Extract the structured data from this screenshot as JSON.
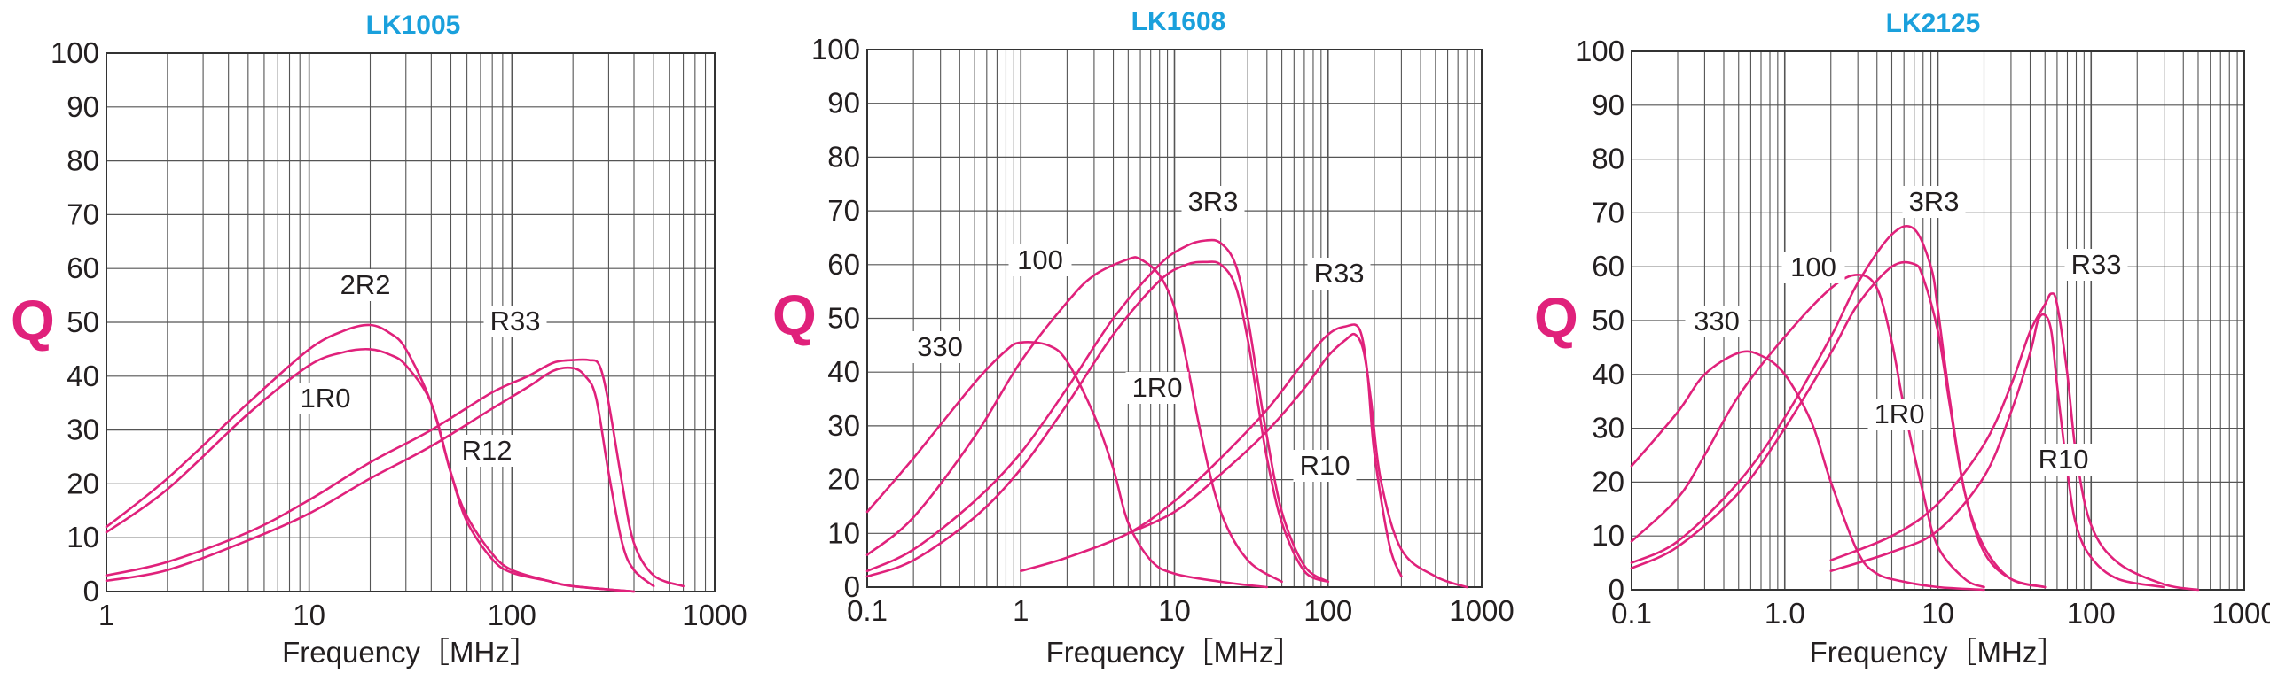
{
  "colors": {
    "title": "#1aa0dc",
    "curve": "#e0217b",
    "ylabel": "#e0217b",
    "grid": "#555555",
    "text": "#231f20"
  },
  "chart_data": [
    {
      "type": "line",
      "title": "LK1005",
      "xlabel": "Frequency［MHz］",
      "ylabel": "Q",
      "xscale": "log",
      "xlim": [
        1,
        1000
      ],
      "ylim": [
        0,
        100
      ],
      "xticks": [
        1,
        10,
        100,
        1000
      ],
      "xtick_labels": [
        "1",
        "10",
        "100",
        "1000"
      ],
      "yticks": [
        0,
        10,
        20,
        30,
        40,
        50,
        60,
        70,
        80,
        90,
        100
      ],
      "grid": true,
      "series": [
        {
          "name": "2R2",
          "x": [
            1,
            2,
            5,
            10,
            15,
            20,
            25,
            30,
            40,
            50,
            60,
            80,
            100,
            150,
            200,
            400
          ],
          "y": [
            12,
            21,
            35,
            45,
            48.5,
            49.5,
            48,
            45,
            35,
            22,
            14,
            7,
            4,
            2,
            1,
            0
          ]
        },
        {
          "name": "1R0",
          "x": [
            1,
            2,
            5,
            10,
            15,
            20,
            25,
            30,
            40,
            50,
            60,
            80,
            100,
            150,
            200,
            400
          ],
          "y": [
            11,
            19,
            33,
            42,
            44.5,
            45,
            44,
            42,
            35,
            22,
            13,
            6,
            3.5,
            2,
            1,
            0
          ]
        },
        {
          "name": "R33",
          "x": [
            1,
            2,
            5,
            10,
            20,
            40,
            80,
            120,
            160,
            200,
            240,
            270,
            300,
            350,
            400,
            500,
            700
          ],
          "y": [
            3,
            5.5,
            11,
            17,
            24,
            30,
            37,
            40,
            42.5,
            43,
            43,
            42,
            35,
            20,
            9,
            3,
            1
          ]
        },
        {
          "name": "R12",
          "x": [
            1,
            2,
            5,
            10,
            20,
            40,
            80,
            120,
            160,
            200,
            230,
            260,
            300,
            350,
            400,
            500
          ],
          "y": [
            2,
            4,
            9.5,
            14.5,
            21,
            27,
            34,
            38,
            41,
            41.5,
            40,
            36,
            22,
            9,
            4,
            1
          ]
        }
      ],
      "annotations": [
        "2R2",
        "1R0",
        "R33",
        "R12"
      ]
    },
    {
      "type": "line",
      "title": "LK1608",
      "xlabel": "Frequency［MHz］",
      "ylabel": "Q",
      "xscale": "log",
      "xlim": [
        0.1,
        1000
      ],
      "ylim": [
        0,
        100
      ],
      "xticks": [
        0.1,
        1,
        10,
        100,
        1000
      ],
      "xtick_labels": [
        "0.1",
        "1",
        "10",
        "100",
        "1000"
      ],
      "yticks": [
        0,
        10,
        20,
        30,
        40,
        50,
        60,
        70,
        80,
        90,
        100
      ],
      "grid": true,
      "series": [
        {
          "name": "330",
          "x": [
            0.1,
            0.2,
            0.5,
            0.8,
            1,
            1.5,
            2,
            3,
            4,
            5,
            7,
            10,
            20,
            40
          ],
          "y": [
            14,
            24,
            38,
            44,
            45.5,
            45,
            42,
            32,
            22,
            12,
            5,
            2.5,
            1,
            0
          ]
        },
        {
          "name": "100",
          "x": [
            0.1,
            0.2,
            0.5,
            1,
            2,
            3,
            5,
            6,
            8,
            10,
            12,
            15,
            20,
            30,
            50
          ],
          "y": [
            6,
            13,
            28,
            42,
            53,
            58,
            61,
            61,
            58,
            52,
            42,
            28,
            14,
            5,
            1
          ]
        },
        {
          "name": "3R3",
          "x": [
            0.1,
            0.2,
            0.5,
            1,
            2,
            4,
            8,
            12,
            16,
            20,
            25,
            30,
            35,
            40,
            50,
            70,
            100
          ],
          "y": [
            3,
            7,
            16,
            25,
            37,
            50,
            60,
            63.5,
            64.5,
            64,
            60,
            50,
            38,
            28,
            14,
            4,
            1
          ]
        },
        {
          "name": "1R0",
          "x": [
            0.1,
            0.2,
            0.5,
            1,
            2,
            4,
            8,
            12,
            16,
            20,
            25,
            30,
            35,
            40,
            50,
            70,
            100
          ],
          "y": [
            2,
            5,
            13,
            22,
            34,
            47,
            57,
            60,
            60.5,
            60,
            56,
            46,
            34,
            24,
            12,
            3,
            1
          ]
        },
        {
          "name": "R33",
          "x": [
            1,
            2,
            5,
            10,
            20,
            40,
            70,
            100,
            130,
            160,
            180,
            200,
            250,
            300
          ],
          "y": [
            3,
            5.5,
            10,
            16,
            24,
            33,
            42,
            47,
            48.5,
            48,
            40,
            25,
            8,
            2
          ]
        },
        {
          "name": "R10",
          "x": [
            5,
            10,
            20,
            40,
            70,
            100,
            130,
            150,
            170,
            190,
            220,
            300,
            500,
            800
          ],
          "y": [
            10,
            14,
            21,
            29,
            37,
            43,
            46,
            47,
            44,
            35,
            20,
            7,
            2,
            0
          ]
        }
      ],
      "annotations": [
        "330",
        "100",
        "3R3",
        "1R0",
        "R33",
        "R10"
      ]
    },
    {
      "type": "line",
      "title": "LK2125",
      "xlabel": "Frequency［MHz］",
      "ylabel": "Q",
      "xscale": "log",
      "xlim": [
        0.1,
        1000
      ],
      "ylim": [
        0,
        100
      ],
      "xticks": [
        0.1,
        1,
        10,
        100,
        1000
      ],
      "xtick_labels": [
        "0.1",
        "1.0",
        "10",
        "100",
        "1000"
      ],
      "yticks": [
        0,
        10,
        20,
        30,
        40,
        50,
        60,
        70,
        80,
        90,
        100
      ],
      "grid": true,
      "series": [
        {
          "name": "330",
          "x": [
            0.1,
            0.2,
            0.3,
            0.5,
            0.7,
            1,
            1.5,
            2,
            3,
            4,
            6,
            10,
            20
          ],
          "y": [
            23,
            33,
            40,
            44,
            43.5,
            40,
            31,
            20,
            7,
            3,
            1.5,
            0.5,
            0
          ]
        },
        {
          "name": "100",
          "x": [
            0.1,
            0.2,
            0.3,
            0.5,
            1,
            2,
            3,
            4,
            5,
            6,
            8,
            10,
            15,
            20
          ],
          "y": [
            9,
            17,
            25,
            36,
            47,
            56,
            58.5,
            56,
            46,
            34,
            18,
            8,
            2,
            0.5
          ]
        },
        {
          "name": "3R3",
          "x": [
            0.1,
            0.2,
            0.5,
            1,
            2,
            3,
            5,
            7,
            9,
            10,
            12,
            15,
            20,
            30,
            50
          ],
          "y": [
            5,
            9,
            20,
            32,
            47,
            57,
            66,
            67,
            60,
            52,
            35,
            18,
            7,
            2,
            0.5
          ]
        },
        {
          "name": "1R0",
          "x": [
            0.1,
            0.2,
            0.5,
            1,
            2,
            3,
            5,
            7,
            8,
            10,
            12,
            15,
            20,
            30,
            50
          ],
          "y": [
            4,
            8,
            18,
            30,
            44,
            53,
            60,
            60.5,
            58,
            48,
            34,
            18,
            8,
            2,
            0.5
          ]
        },
        {
          "name": "R33",
          "x": [
            2,
            5,
            10,
            20,
            30,
            40,
            50,
            55,
            60,
            70,
            80,
            100,
            150,
            300,
            500
          ],
          "y": [
            5.5,
            10,
            16,
            27,
            38,
            48,
            53,
            55,
            53,
            40,
            25,
            12,
            5,
            1,
            0
          ]
        },
        {
          "name": "R10",
          "x": [
            2,
            5,
            10,
            20,
            30,
            40,
            45,
            50,
            55,
            60,
            70,
            80,
            100,
            150,
            300
          ],
          "y": [
            3.5,
            7,
            11,
            21,
            33,
            44,
            50,
            51,
            48,
            38,
            22,
            12,
            6,
            2,
            0.5
          ]
        }
      ],
      "annotations": [
        "330",
        "100",
        "3R3",
        "1R0",
        "R33",
        "R10"
      ]
    }
  ]
}
